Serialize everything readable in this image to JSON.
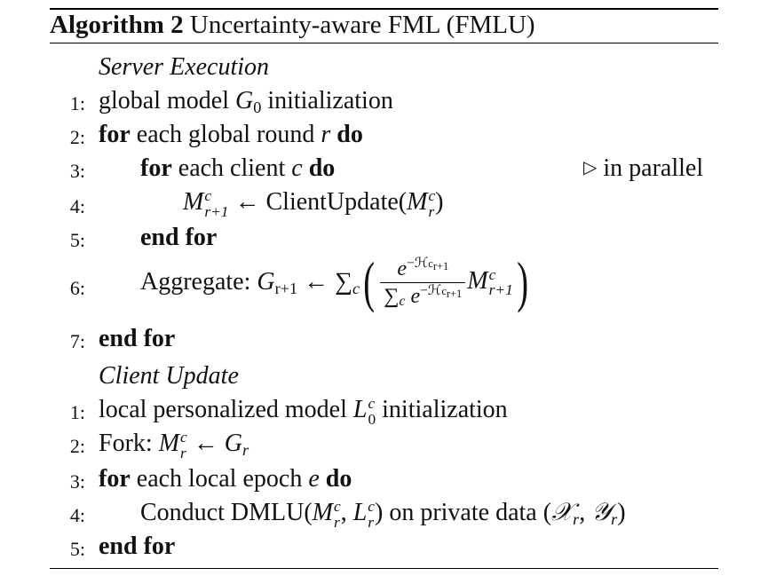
{
  "algorithm": {
    "label": "Algorithm 2",
    "title": "Uncertainty-aware FML (FMLU)"
  },
  "server": {
    "heading": "Server Execution",
    "lines": [
      {
        "num": "1:",
        "text": "global model G0 initialization"
      },
      {
        "num": "2:",
        "text": "for each global round r do"
      },
      {
        "num": "3:",
        "text": "for each client c do",
        "comment": "in parallel"
      },
      {
        "num": "4:",
        "text": "Mcr+1 ← ClientUpdate(Mcr)"
      },
      {
        "num": "5:",
        "text": "end for"
      },
      {
        "num": "6:",
        "text": "Aggregate: Gr+1 ← Σc( e−Hcr+1 / Σc e−Hcr+1 · Mcr+1 )"
      },
      {
        "num": "7:",
        "text": "end for"
      }
    ]
  },
  "client": {
    "heading": "Client Update",
    "lines": [
      {
        "num": "1:",
        "text": "local personalized model Lc0 initialization"
      },
      {
        "num": "2:",
        "text": "Fork: Mcr ← Gr"
      },
      {
        "num": "3:",
        "text": "for each local epoch e do"
      },
      {
        "num": "4:",
        "text": "Conduct DMLU(Mcr, Lcr) on private data (Xr, Yr)"
      },
      {
        "num": "5:",
        "text": "end for"
      }
    ]
  },
  "words": {
    "for": "for",
    "do": "do",
    "end_for": "end for",
    "each_global_round": "each global round",
    "each_client": "each client",
    "each_local_epoch": "each local epoch",
    "global_model": "global model",
    "initialization": "initialization",
    "client_update_fn": "ClientUpdate",
    "aggregate": "Aggregate:",
    "local_personalized_model": "local personalized model",
    "fork": "Fork:",
    "conduct": "Conduct DMLU",
    "on_private_data": "on private data",
    "comment_symbol": "▷",
    "in_parallel": "in parallel"
  }
}
